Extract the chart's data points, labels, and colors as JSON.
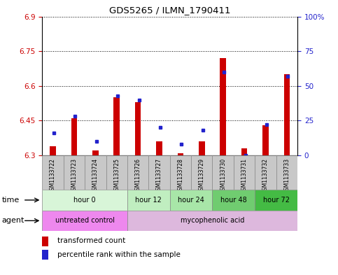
{
  "title": "GDS5265 / ILMN_1790411",
  "samples": [
    "GSM1133722",
    "GSM1133723",
    "GSM1133724",
    "GSM1133725",
    "GSM1133726",
    "GSM1133727",
    "GSM1133728",
    "GSM1133729",
    "GSM1133730",
    "GSM1133731",
    "GSM1133732",
    "GSM1133733"
  ],
  "transformed_count": [
    6.34,
    6.46,
    6.32,
    6.55,
    6.53,
    6.36,
    6.31,
    6.36,
    6.72,
    6.33,
    6.43,
    6.65
  ],
  "percentile_rank": [
    16,
    28,
    10,
    43,
    40,
    20,
    8,
    18,
    60,
    0,
    22,
    57
  ],
  "ylim_left": [
    6.3,
    6.9
  ],
  "ylim_right": [
    0,
    100
  ],
  "yticks_left": [
    6.3,
    6.45,
    6.6,
    6.75,
    6.9
  ],
  "yticks_right": [
    0,
    25,
    50,
    75,
    100
  ],
  "ytick_labels_left": [
    "6.3",
    "6.45",
    "6.6",
    "6.75",
    "6.9"
  ],
  "ytick_labels_right": [
    "0",
    "25",
    "50",
    "75",
    "100%"
  ],
  "bar_bottom": 6.3,
  "time_groups": [
    {
      "label": "hour 0",
      "start": 0,
      "end": 4,
      "color": "#d8f5d8"
    },
    {
      "label": "hour 12",
      "start": 4,
      "end": 6,
      "color": "#c0eec0"
    },
    {
      "label": "hour 24",
      "start": 6,
      "end": 8,
      "color": "#a8e6a8"
    },
    {
      "label": "hour 48",
      "start": 8,
      "end": 10,
      "color": "#70cc70"
    },
    {
      "label": "hour 72",
      "start": 10,
      "end": 12,
      "color": "#44bb44"
    }
  ],
  "agent_groups": [
    {
      "label": "untreated control",
      "start": 0,
      "end": 4,
      "color": "#ee88ee"
    },
    {
      "label": "mycophenolic acid",
      "start": 4,
      "end": 12,
      "color": "#ddb8dd"
    }
  ],
  "legend_red_label": "transformed count",
  "legend_blue_label": "percentile rank within the sample",
  "bar_color_red": "#cc0000",
  "bar_color_blue": "#2222cc",
  "sample_bg_color": "#c8c8c8",
  "left_tick_color": "#cc0000",
  "right_tick_color": "#2222cc",
  "fig_bg_color": "#ffffff"
}
